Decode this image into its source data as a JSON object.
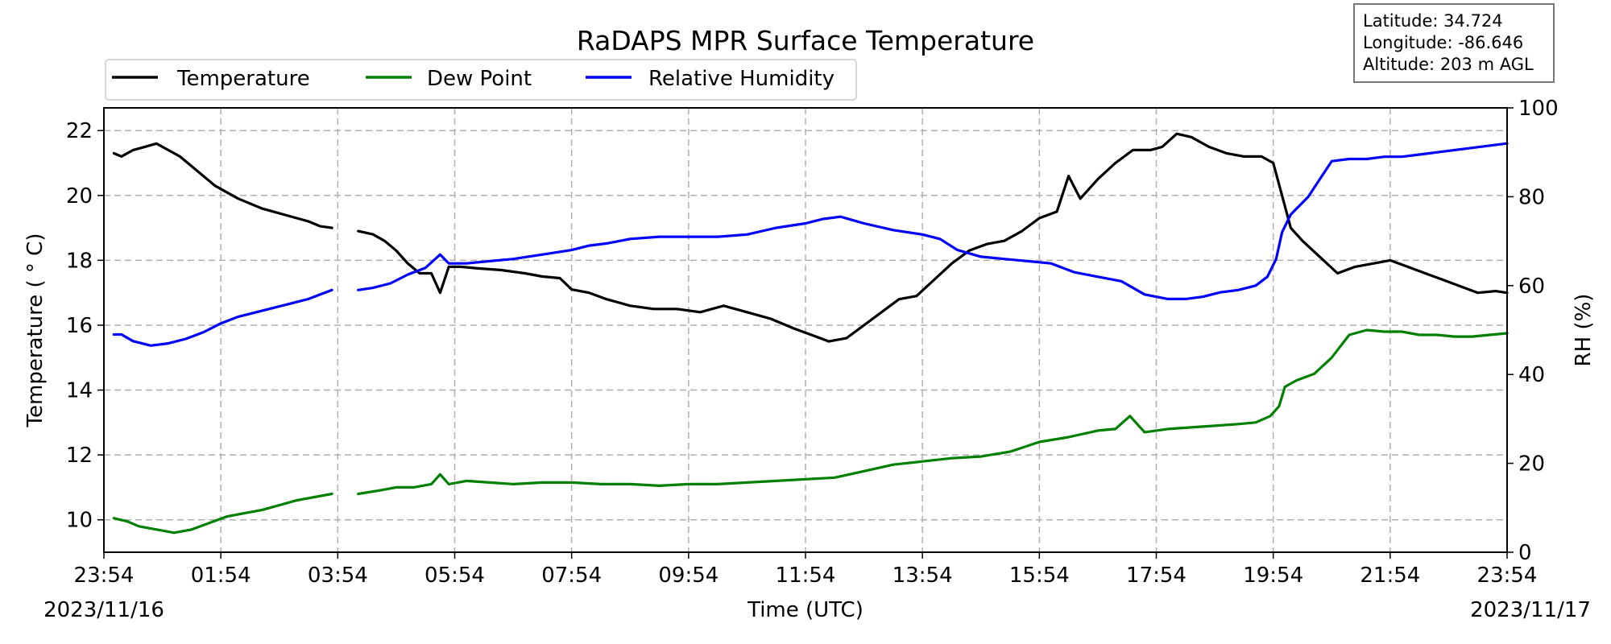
{
  "chart_data": {
    "type": "line",
    "title": "RaDAPS MPR Surface Temperature",
    "xlabel": "Time (UTC)",
    "ylabel_left": "Temperature ( ° C)",
    "ylabel_right": "RH (%)",
    "x_start_date": "2023/11/16",
    "x_end_date": "2023/11/17",
    "x_ticks": [
      "23:54",
      "01:54",
      "03:54",
      "05:54",
      "07:54",
      "09:54",
      "11:54",
      "13:54",
      "15:54",
      "17:54",
      "19:54",
      "21:54",
      "23:54"
    ],
    "ylim_left": [
      9,
      22.7
    ],
    "y_ticks_left": [
      10,
      12,
      14,
      16,
      18,
      20,
      22
    ],
    "ylim_right": [
      0,
      100
    ],
    "y_ticks_right": [
      0,
      20,
      40,
      60,
      80,
      100
    ],
    "grid": true,
    "legend_placement": "top-left",
    "info_box": {
      "latitude": "Latitude: 34.724",
      "longitude": "Longitude: -86.646",
      "altitude": "Altitude: 203 m AGL"
    },
    "series": [
      {
        "name": "Temperature",
        "axis": "left",
        "color": "#000000",
        "segments": [
          [
            [
              0.17,
              21.3
            ],
            [
              0.3,
              21.2
            ],
            [
              0.5,
              21.4
            ],
            [
              0.7,
              21.5
            ],
            [
              0.9,
              21.6
            ],
            [
              1.1,
              21.4
            ],
            [
              1.3,
              21.2
            ],
            [
              1.5,
              20.9
            ],
            [
              1.7,
              20.6
            ],
            [
              1.9,
              20.3
            ],
            [
              2.1,
              20.1
            ],
            [
              2.3,
              19.9
            ],
            [
              2.5,
              19.75
            ],
            [
              2.7,
              19.6
            ],
            [
              2.9,
              19.5
            ],
            [
              3.1,
              19.4
            ],
            [
              3.3,
              19.3
            ],
            [
              3.5,
              19.2
            ],
            [
              3.7,
              19.05
            ],
            [
              3.9,
              19.0
            ]
          ],
          [
            [
              4.35,
              18.9
            ],
            [
              4.6,
              18.8
            ],
            [
              4.8,
              18.6
            ],
            [
              5.0,
              18.3
            ],
            [
              5.2,
              17.9
            ],
            [
              5.4,
              17.6
            ],
            [
              5.6,
              17.6
            ],
            [
              5.75,
              17.0
            ],
            [
              5.9,
              17.8
            ],
            [
              6.1,
              17.8
            ],
            [
              6.4,
              17.75
            ],
            [
              6.8,
              17.7
            ],
            [
              7.2,
              17.6
            ],
            [
              7.5,
              17.5
            ],
            [
              7.8,
              17.45
            ],
            [
              8.0,
              17.1
            ],
            [
              8.3,
              17.0
            ],
            [
              8.6,
              16.8
            ],
            [
              9.0,
              16.6
            ],
            [
              9.4,
              16.5
            ],
            [
              9.8,
              16.5
            ],
            [
              10.2,
              16.4
            ],
            [
              10.6,
              16.6
            ],
            [
              11.0,
              16.4
            ],
            [
              11.4,
              16.2
            ],
            [
              11.8,
              15.9
            ],
            [
              12.1,
              15.7
            ],
            [
              12.4,
              15.5
            ],
            [
              12.7,
              15.6
            ],
            [
              13.0,
              16.0
            ],
            [
              13.3,
              16.4
            ],
            [
              13.6,
              16.8
            ],
            [
              13.9,
              16.9
            ],
            [
              14.2,
              17.4
            ],
            [
              14.5,
              17.9
            ],
            [
              14.8,
              18.3
            ],
            [
              15.1,
              18.5
            ],
            [
              15.4,
              18.6
            ],
            [
              15.7,
              18.9
            ],
            [
              16.0,
              19.3
            ],
            [
              16.3,
              19.5
            ],
            [
              16.5,
              20.6
            ],
            [
              16.7,
              19.9
            ],
            [
              17.0,
              20.5
            ],
            [
              17.3,
              21.0
            ],
            [
              17.6,
              21.4
            ],
            [
              17.9,
              21.4
            ],
            [
              18.1,
              21.5
            ],
            [
              18.35,
              21.9
            ],
            [
              18.6,
              21.8
            ],
            [
              18.9,
              21.5
            ],
            [
              19.2,
              21.3
            ],
            [
              19.5,
              21.2
            ],
            [
              19.8,
              21.2
            ],
            [
              20.0,
              21.0
            ],
            [
              20.15,
              20.0
            ],
            [
              20.3,
              19.0
            ],
            [
              20.5,
              18.6
            ],
            [
              20.8,
              18.1
            ],
            [
              21.1,
              17.6
            ],
            [
              21.4,
              17.8
            ],
            [
              21.7,
              17.9
            ],
            [
              22.0,
              18.0
            ],
            [
              22.3,
              17.8
            ],
            [
              22.6,
              17.6
            ],
            [
              22.9,
              17.4
            ],
            [
              23.2,
              17.2
            ],
            [
              23.5,
              17.0
            ],
            [
              23.8,
              17.05
            ],
            [
              24.0,
              17.0
            ]
          ]
        ]
      },
      {
        "name": "Dew Point",
        "axis": "left",
        "color": "#008000",
        "segments": [
          [
            [
              0.17,
              10.05
            ],
            [
              0.4,
              9.95
            ],
            [
              0.6,
              9.8
            ],
            [
              0.9,
              9.7
            ],
            [
              1.2,
              9.6
            ],
            [
              1.5,
              9.7
            ],
            [
              1.8,
              9.9
            ],
            [
              2.1,
              10.1
            ],
            [
              2.4,
              10.2
            ],
            [
              2.7,
              10.3
            ],
            [
              3.0,
              10.45
            ],
            [
              3.3,
              10.6
            ],
            [
              3.6,
              10.7
            ],
            [
              3.9,
              10.8
            ]
          ],
          [
            [
              4.35,
              10.8
            ],
            [
              4.7,
              10.9
            ],
            [
              5.0,
              11.0
            ],
            [
              5.3,
              11.0
            ],
            [
              5.6,
              11.1
            ],
            [
              5.75,
              11.4
            ],
            [
              5.9,
              11.1
            ],
            [
              6.2,
              11.2
            ],
            [
              6.6,
              11.15
            ],
            [
              7.0,
              11.1
            ],
            [
              7.5,
              11.15
            ],
            [
              8.0,
              11.15
            ],
            [
              8.5,
              11.1
            ],
            [
              9.0,
              11.1
            ],
            [
              9.5,
              11.05
            ],
            [
              10.0,
              11.1
            ],
            [
              10.5,
              11.1
            ],
            [
              11.0,
              11.15
            ],
            [
              11.5,
              11.2
            ],
            [
              12.0,
              11.25
            ],
            [
              12.5,
              11.3
            ],
            [
              13.0,
              11.5
            ],
            [
              13.5,
              11.7
            ],
            [
              14.0,
              11.8
            ],
            [
              14.5,
              11.9
            ],
            [
              15.0,
              11.95
            ],
            [
              15.5,
              12.1
            ],
            [
              16.0,
              12.4
            ],
            [
              16.5,
              12.55
            ],
            [
              17.0,
              12.75
            ],
            [
              17.3,
              12.8
            ],
            [
              17.55,
              13.2
            ],
            [
              17.8,
              12.7
            ],
            [
              18.2,
              12.8
            ],
            [
              18.6,
              12.85
            ],
            [
              19.0,
              12.9
            ],
            [
              19.4,
              12.95
            ],
            [
              19.7,
              13.0
            ],
            [
              19.95,
              13.2
            ],
            [
              20.1,
              13.5
            ],
            [
              20.2,
              14.1
            ],
            [
              20.4,
              14.3
            ],
            [
              20.7,
              14.5
            ],
            [
              21.0,
              15.0
            ],
            [
              21.3,
              15.7
            ],
            [
              21.6,
              15.85
            ],
            [
              21.9,
              15.8
            ],
            [
              22.2,
              15.8
            ],
            [
              22.5,
              15.7
            ],
            [
              22.8,
              15.7
            ],
            [
              23.1,
              15.65
            ],
            [
              23.4,
              15.65
            ],
            [
              23.7,
              15.7
            ],
            [
              24.0,
              15.75
            ]
          ]
        ]
      },
      {
        "name": "Relative Humidity",
        "axis": "right",
        "color": "#0000ff",
        "segments": [
          [
            [
              0.17,
              49
            ],
            [
              0.3,
              49
            ],
            [
              0.5,
              47.5
            ],
            [
              0.8,
              46.5
            ],
            [
              1.1,
              47
            ],
            [
              1.4,
              48
            ],
            [
              1.7,
              49.5
            ],
            [
              2.0,
              51.5
            ],
            [
              2.3,
              53
            ],
            [
              2.6,
              54
            ],
            [
              2.9,
              55
            ],
            [
              3.2,
              56
            ],
            [
              3.5,
              57
            ],
            [
              3.7,
              58
            ],
            [
              3.9,
              59
            ]
          ],
          [
            [
              4.35,
              59
            ],
            [
              4.6,
              59.5
            ],
            [
              4.9,
              60.5
            ],
            [
              5.2,
              62.5
            ],
            [
              5.5,
              64
            ],
            [
              5.75,
              67
            ],
            [
              5.9,
              65
            ],
            [
              6.2,
              65
            ],
            [
              6.6,
              65.5
            ],
            [
              7.0,
              66
            ],
            [
              7.5,
              67
            ],
            [
              8.0,
              68
            ],
            [
              8.3,
              69
            ],
            [
              8.6,
              69.5
            ],
            [
              9.0,
              70.5
            ],
            [
              9.5,
              71
            ],
            [
              10.0,
              71
            ],
            [
              10.5,
              71
            ],
            [
              11.0,
              71.5
            ],
            [
              11.5,
              73
            ],
            [
              12.0,
              74
            ],
            [
              12.3,
              75
            ],
            [
              12.6,
              75.5
            ],
            [
              13.0,
              74
            ],
            [
              13.5,
              72.5
            ],
            [
              14.0,
              71.5
            ],
            [
              14.3,
              70.5
            ],
            [
              14.6,
              68
            ],
            [
              15.0,
              66.5
            ],
            [
              15.4,
              66
            ],
            [
              15.8,
              65.5
            ],
            [
              16.2,
              65
            ],
            [
              16.6,
              63
            ],
            [
              17.0,
              62
            ],
            [
              17.4,
              61
            ],
            [
              17.8,
              58
            ],
            [
              18.2,
              57
            ],
            [
              18.5,
              57
            ],
            [
              18.8,
              57.5
            ],
            [
              19.1,
              58.5
            ],
            [
              19.4,
              59
            ],
            [
              19.7,
              60
            ],
            [
              19.9,
              62
            ],
            [
              20.05,
              66
            ],
            [
              20.15,
              72
            ],
            [
              20.3,
              76
            ],
            [
              20.6,
              80
            ],
            [
              20.8,
              84
            ],
            [
              21.0,
              88
            ],
            [
              21.3,
              88.5
            ],
            [
              21.6,
              88.5
            ],
            [
              21.9,
              89
            ],
            [
              22.2,
              89
            ],
            [
              22.5,
              89.5
            ],
            [
              22.8,
              90
            ],
            [
              23.1,
              90.5
            ],
            [
              23.4,
              91
            ],
            [
              23.7,
              91.5
            ],
            [
              24.0,
              92
            ]
          ]
        ]
      }
    ]
  }
}
